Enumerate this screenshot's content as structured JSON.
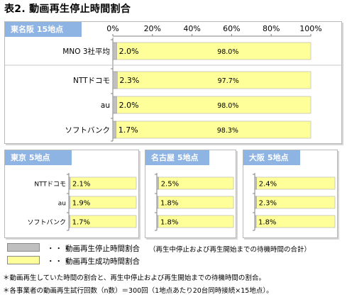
{
  "title": "表2. 動画再生停止時間割合",
  "colors": {
    "stop": "#bfbfbf",
    "success": "#ffff99",
    "header": "#8eb4e3"
  },
  "chart_data": [
    {
      "type": "bar",
      "stacked": true,
      "orientation": "horizontal",
      "title": "東名阪 15地点",
      "categories": [
        "MNO 3社平均",
        "NTTドコモ",
        "au",
        "ソフトバンク"
      ],
      "xlim": [
        0,
        100
      ],
      "x_ticks": [
        "0%",
        "20%",
        "40%",
        "60%",
        "80%",
        "100%"
      ],
      "series": [
        {
          "name": "動画再生停止時間割合",
          "values": [
            2.0,
            2.3,
            2.0,
            1.7
          ],
          "labels": [
            "2.0%",
            "2.3%",
            "2.0%",
            "1.7%"
          ]
        },
        {
          "name": "動画再生成功時間割合",
          "values": [
            98.0,
            97.7,
            98.0,
            98.3
          ],
          "labels": [
            "98.0%",
            "97.7%",
            "98.0%",
            "98.3%"
          ]
        }
      ]
    },
    {
      "type": "bar",
      "stacked": true,
      "orientation": "horizontal",
      "title": "東京 5地点",
      "categories": [
        "NTTドコモ",
        "au",
        "ソフトバンク"
      ],
      "xlim": [
        0,
        100
      ],
      "series": [
        {
          "name": "動画再生停止時間割合",
          "values": [
            2.1,
            1.9,
            1.7
          ],
          "labels": [
            "2.1%",
            "1.9%",
            "1.7%"
          ]
        },
        {
          "name": "動画再生成功時間割合",
          "values": [
            97.9,
            98.1,
            98.3
          ]
        }
      ]
    },
    {
      "type": "bar",
      "stacked": true,
      "orientation": "horizontal",
      "title": "名古屋 5地点",
      "categories": [
        "NTTドコモ",
        "au",
        "ソフトバンク"
      ],
      "xlim": [
        0,
        100
      ],
      "series": [
        {
          "name": "動画再生停止時間割合",
          "values": [
            2.5,
            1.8,
            1.8
          ],
          "labels": [
            "2.5%",
            "1.8%",
            "1.8%"
          ]
        },
        {
          "name": "動画再生成功時間割合",
          "values": [
            97.5,
            98.2,
            98.2
          ]
        }
      ]
    },
    {
      "type": "bar",
      "stacked": true,
      "orientation": "horizontal",
      "title": "大阪 5地点",
      "categories": [
        "NTTドコモ",
        "au",
        "ソフトバンク"
      ],
      "xlim": [
        0,
        100
      ],
      "series": [
        {
          "name": "動画再生停止時間割合",
          "values": [
            2.4,
            2.3,
            1.8
          ],
          "labels": [
            "2.4%",
            "2.3%",
            "1.8%"
          ]
        },
        {
          "name": "動画再生成功時間割合",
          "values": [
            97.6,
            97.7,
            98.2
          ]
        }
      ]
    }
  ],
  "legend": {
    "dots": "・・・",
    "stop_label": "動画再生停止時間割合",
    "stop_note": "（再生中停止および再生開始までの待機時間の合計）",
    "success_label": "動画再生成功時間割合"
  },
  "notes": [
    "＊動画再生していた時間の割合と、再生中停止および再生開始までの待機時間の割合。",
    "＊各事業者の動画再生試行回数（n数）＝300回（1地点あたり20台同時接続×15地点）。"
  ]
}
